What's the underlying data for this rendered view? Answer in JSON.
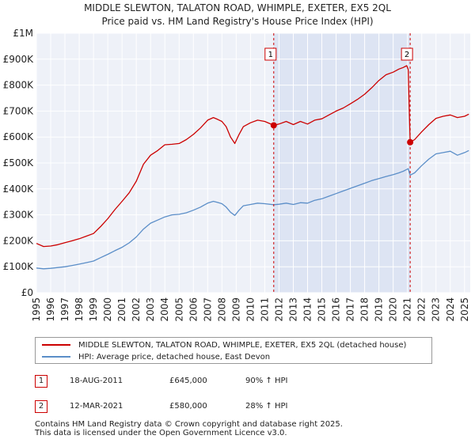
{
  "chart_data": {
    "type": "line",
    "title": "MIDDLE SLEWTON, TALATON ROAD, WHIMPLE, EXETER, EX5 2QL",
    "subtitle": "Price paid vs. HM Land Registry's House Price Index (HPI)",
    "xlabel": "",
    "ylabel": "",
    "xlim": [
      1995,
      2025.4
    ],
    "ylim": [
      0,
      1000000
    ],
    "y_ticks": [
      0,
      100000,
      200000,
      300000,
      400000,
      500000,
      600000,
      700000,
      800000,
      900000,
      1000000
    ],
    "y_tick_labels": [
      "£0",
      "£100K",
      "£200K",
      "£300K",
      "£400K",
      "£500K",
      "£600K",
      "£700K",
      "£800K",
      "£900K",
      "£1M"
    ],
    "x_ticks": [
      1995,
      1996,
      1997,
      1998,
      1999,
      2000,
      2001,
      2002,
      2003,
      2004,
      2005,
      2006,
      2007,
      2008,
      2009,
      2010,
      2011,
      2012,
      2013,
      2014,
      2015,
      2016,
      2017,
      2018,
      2019,
      2020,
      2021,
      2022,
      2023,
      2024,
      2025
    ],
    "x_tick_labels": [
      "1995",
      "1996",
      "1997",
      "1998",
      "1999",
      "2000",
      "2001",
      "2002",
      "2003",
      "2004",
      "2005",
      "2006",
      "2007",
      "2008",
      "2009",
      "2010",
      "2011",
      "2012",
      "2013",
      "2014",
      "2015",
      "2016",
      "2017",
      "2018",
      "2019",
      "2020",
      "2021",
      "2022",
      "2023",
      "2024",
      "2025"
    ],
    "grid": true,
    "shaded_period": [
      2011.63,
      2021.19
    ],
    "series": [
      {
        "name": "MIDDLE SLEWTON, TALATON ROAD, WHIMPLE, EXETER, EX5 2QL (detached house)",
        "color": "#cc0000",
        "x": [
          1995.0,
          1995.5,
          1996.0,
          1996.5,
          1997.0,
          1997.5,
          1998.0,
          1998.5,
          1999.0,
          1999.5,
          2000.0,
          2000.5,
          2001.0,
          2001.5,
          2002.0,
          2002.5,
          2003.0,
          2003.5,
          2004.0,
          2004.5,
          2005.0,
          2005.5,
          2006.0,
          2006.5,
          2007.0,
          2007.4,
          2007.7,
          2008.0,
          2008.3,
          2008.6,
          2008.9,
          2009.2,
          2009.5,
          2010.0,
          2010.5,
          2011.0,
          2011.63,
          2012.0,
          2012.5,
          2013.0,
          2013.5,
          2014.0,
          2014.5,
          2015.0,
          2015.5,
          2016.0,
          2016.5,
          2017.0,
          2017.5,
          2018.0,
          2018.5,
          2019.0,
          2019.5,
          2020.0,
          2020.4,
          2020.7,
          2020.95,
          2021.05,
          2021.19,
          2021.5,
          2022.0,
          2022.5,
          2023.0,
          2023.5,
          2024.0,
          2024.5,
          2025.0,
          2025.3
        ],
        "values": [
          190000,
          178000,
          180000,
          185000,
          193000,
          200000,
          208000,
          218000,
          228000,
          255000,
          285000,
          320000,
          352000,
          385000,
          430000,
          495000,
          530000,
          548000,
          570000,
          572000,
          575000,
          590000,
          610000,
          635000,
          665000,
          675000,
          668000,
          660000,
          640000,
          600000,
          575000,
          610000,
          640000,
          655000,
          665000,
          660000,
          645000,
          650000,
          660000,
          648000,
          660000,
          650000,
          665000,
          670000,
          685000,
          700000,
          712000,
          728000,
          745000,
          765000,
          790000,
          818000,
          840000,
          850000,
          862000,
          868000,
          875000,
          860000,
          580000,
          590000,
          620000,
          648000,
          672000,
          680000,
          685000,
          675000,
          680000,
          688000
        ]
      },
      {
        "name": "HPI: Average price, detached house, East Devon",
        "color": "#5b8ec8",
        "x": [
          1995.0,
          1995.5,
          1996.0,
          1996.5,
          1997.0,
          1997.5,
          1998.0,
          1998.5,
          1999.0,
          1999.5,
          2000.0,
          2000.5,
          2001.0,
          2001.5,
          2002.0,
          2002.5,
          2003.0,
          2003.5,
          2004.0,
          2004.5,
          2005.0,
          2005.5,
          2006.0,
          2006.5,
          2007.0,
          2007.4,
          2007.7,
          2008.0,
          2008.3,
          2008.6,
          2008.9,
          2009.2,
          2009.5,
          2010.0,
          2010.5,
          2011.0,
          2011.63,
          2012.0,
          2012.5,
          2013.0,
          2013.5,
          2014.0,
          2014.5,
          2015.0,
          2015.5,
          2016.0,
          2016.5,
          2017.0,
          2017.5,
          2018.0,
          2018.5,
          2019.0,
          2019.5,
          2020.0,
          2020.4,
          2020.7,
          2020.95,
          2021.05,
          2021.19,
          2021.5,
          2022.0,
          2022.5,
          2023.0,
          2023.5,
          2024.0,
          2024.5,
          2025.0,
          2025.3
        ],
        "values": [
          95000,
          92000,
          94000,
          97000,
          100000,
          105000,
          110000,
          116000,
          122000,
          135000,
          148000,
          162000,
          175000,
          192000,
          215000,
          245000,
          268000,
          280000,
          292000,
          300000,
          302000,
          308000,
          318000,
          330000,
          345000,
          352000,
          348000,
          343000,
          330000,
          310000,
          298000,
          318000,
          335000,
          340000,
          345000,
          343000,
          339000,
          341000,
          345000,
          340000,
          347000,
          345000,
          356000,
          362000,
          372000,
          382000,
          392000,
          402000,
          412000,
          422000,
          432000,
          440000,
          448000,
          455000,
          462000,
          468000,
          475000,
          478000,
          453000,
          462000,
          490000,
          515000,
          535000,
          540000,
          545000,
          530000,
          540000,
          548000
        ]
      }
    ],
    "annotations": [
      {
        "label": "1",
        "x": 2011.63,
        "value": 645000
      },
      {
        "label": "2",
        "x": 2021.19,
        "value": 580000
      }
    ]
  },
  "legend": {
    "items": [
      {
        "label": "MIDDLE SLEWTON, TALATON ROAD, WHIMPLE, EXETER, EX5 2QL (detached house)",
        "color": "#cc0000"
      },
      {
        "label": "HPI: Average price, detached house, East Devon",
        "color": "#5b8ec8"
      }
    ]
  },
  "sales": [
    {
      "num": "1",
      "date": "18-AUG-2011",
      "price": "£645,000",
      "hpi": "90% ↑ HPI"
    },
    {
      "num": "2",
      "date": "12-MAR-2021",
      "price": "£580,000",
      "hpi": "28% ↑ HPI"
    }
  ],
  "footer": {
    "line1": "Contains HM Land Registry data © Crown copyright and database right 2025.",
    "line2": "This data is licensed under the Open Government Licence v3.0."
  }
}
